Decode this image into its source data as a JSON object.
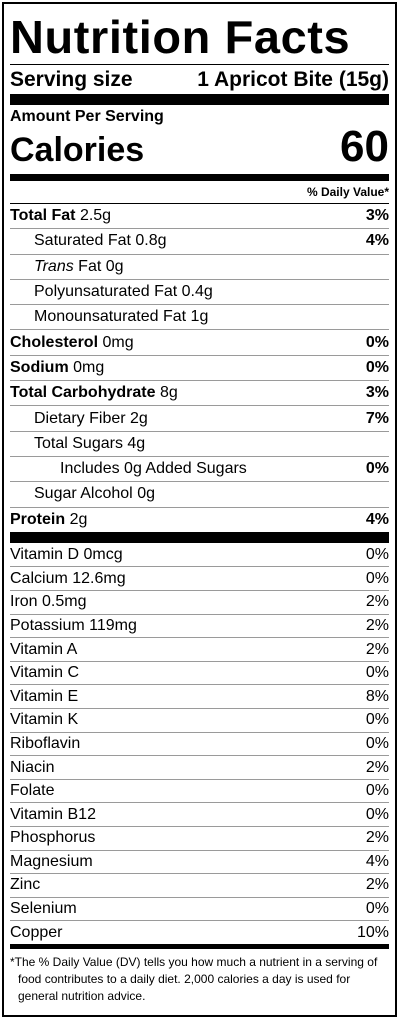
{
  "title": "Nutrition Facts",
  "serving": {
    "label": "Serving size",
    "value": "1 Apricot Bite (15g)"
  },
  "amount_per_serving": "Amount Per Serving",
  "calories": {
    "label": "Calories",
    "value": "60"
  },
  "daily_value_header": "% Daily Value*",
  "nutrients": [
    {
      "name": "Total Fat",
      "amount": "2.5g",
      "dv": "3%"
    },
    {
      "name": "Saturated Fat",
      "amount": "0.8g",
      "dv": "4%"
    },
    {
      "name_italic": "Trans",
      "name": "Fat",
      "amount": "0g",
      "dv": ""
    },
    {
      "name": "Polyunsaturated Fat",
      "amount": "0.4g",
      "dv": ""
    },
    {
      "name": "Monounsaturated Fat",
      "amount": "1g",
      "dv": ""
    },
    {
      "name": "Cholesterol",
      "amount": "0mg",
      "dv": "0%"
    },
    {
      "name": "Sodium",
      "amount": "0mg",
      "dv": "0%"
    },
    {
      "name": "Total Carbohydrate",
      "amount": "8g",
      "dv": "3%"
    },
    {
      "name": "Dietary Fiber",
      "amount": "2g",
      "dv": "7%"
    },
    {
      "name": "Total Sugars",
      "amount": "4g",
      "dv": ""
    },
    {
      "name": "Includes 0g Added Sugars",
      "amount": "",
      "dv": "0%"
    },
    {
      "name": "Sugar Alcohol",
      "amount": "0g",
      "dv": ""
    },
    {
      "name": "Protein",
      "amount": "2g",
      "dv": "4%"
    }
  ],
  "vitamins": [
    {
      "name": "Vitamin D 0mcg",
      "dv": "0%"
    },
    {
      "name": "Calcium 12.6mg",
      "dv": "0%"
    },
    {
      "name": "Iron 0.5mg",
      "dv": "2%"
    },
    {
      "name": "Potassium 119mg",
      "dv": "2%"
    },
    {
      "name": "Vitamin A",
      "dv": "2%"
    },
    {
      "name": "Vitamin C",
      "dv": "0%"
    },
    {
      "name": "Vitamin E",
      "dv": "8%"
    },
    {
      "name": "Vitamin K",
      "dv": "0%"
    },
    {
      "name": "Riboflavin",
      "dv": "0%"
    },
    {
      "name": "Niacin",
      "dv": "2%"
    },
    {
      "name": "Folate",
      "dv": "0%"
    },
    {
      "name": "Vitamin B12",
      "dv": "0%"
    },
    {
      "name": "Phosphorus",
      "dv": "2%"
    },
    {
      "name": "Magnesium",
      "dv": "4%"
    },
    {
      "name": "Zinc",
      "dv": "2%"
    },
    {
      "name": "Selenium",
      "dv": "0%"
    },
    {
      "name": "Copper",
      "dv": "10%"
    }
  ],
  "footnote": "*The % Daily Value (DV) tells you how much a nutrient in a serving of food contributes to a daily diet. 2,000 calories a day is used for general nutrition advice."
}
